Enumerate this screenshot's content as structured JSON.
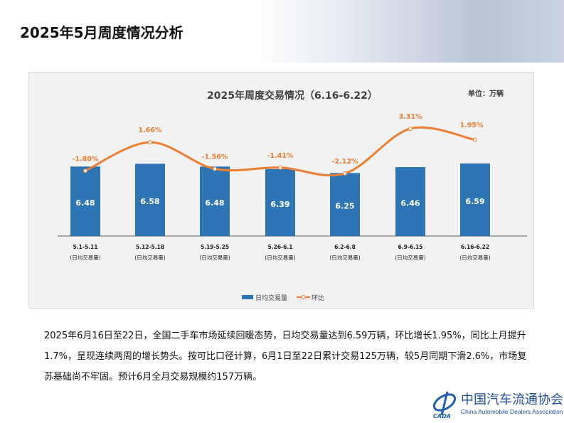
{
  "page_title": "2025年5月周度情况分析",
  "body_text": "2025年6月16日至22日，全国二手车市场延续回暖态势，日均交易量达到6.59万辆，环比增长1.95%，同比上月提升1.7%，呈现连续两周的增长势头。按可比口径计算，6月1日至22日累计交易125万辆，较5月同期下滑2.6%，市场复苏基础尚不牢固。预计6月全月交易规模约157万辆。",
  "logo": {
    "cn": "中国汽车流通协会",
    "en": "China Automobile Dealers Association",
    "mark": "CADA"
  },
  "chart_data": {
    "type": "bar+line",
    "title": "2025年周度交易情况（6.16-6.22）",
    "unit": "单位：万辆",
    "categories": [
      "5.1-5.11",
      "5.12-5.18",
      "5.19-5.25",
      "5.26-6.1",
      "6.2-6.8",
      "6.9-6.15",
      "6.16-6.22"
    ],
    "category_sub": "(日均交易量)",
    "series": [
      {
        "name": "日均交易量",
        "type": "bar",
        "values": [
          6.48,
          6.58,
          6.48,
          6.39,
          6.25,
          6.46,
          6.59
        ],
        "color": "#2e75b6"
      },
      {
        "name": "环比",
        "type": "line",
        "values": [
          -1.8,
          1.66,
          -1.56,
          -1.41,
          -2.12,
          3.31,
          1.95
        ],
        "labels": [
          "-1.80%",
          "1.66%",
          "-1.56%",
          "-1.41%",
          "-2.12%",
          "3.31%",
          "1.95%"
        ],
        "color": "#ed7d31"
      }
    ],
    "legend": "bottom"
  }
}
